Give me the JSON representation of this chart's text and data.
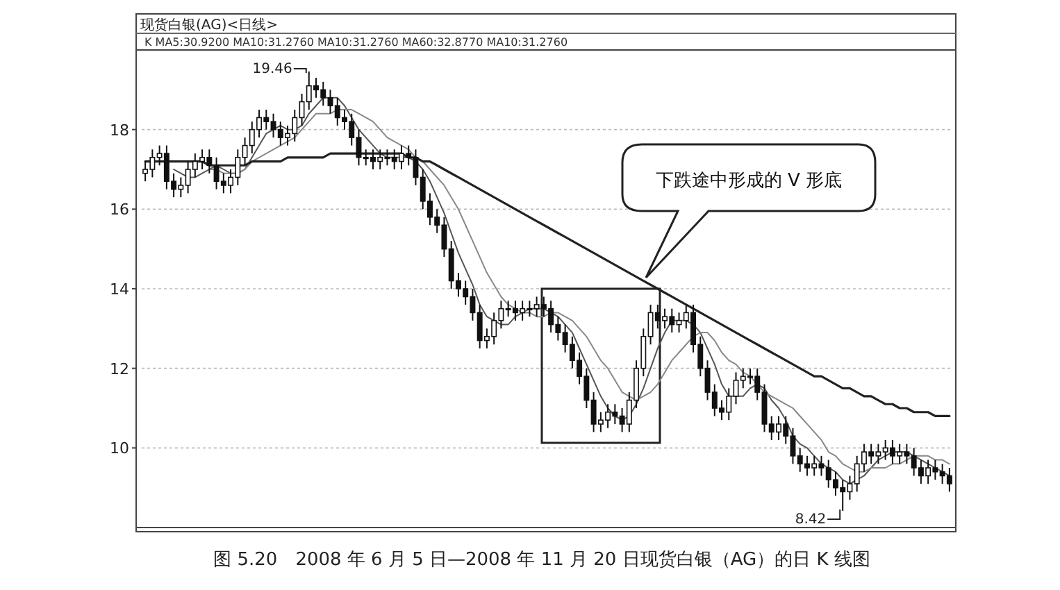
{
  "chart_data": {
    "type": "candlestick",
    "title": "现货白银(AG)<日线>",
    "subtitle": "K MA5:30.9200 MA10:31.2760 MA10:31.2760 MA60:32.8770 MA10:31.2760",
    "categories": [
      null,
      null,
      null,
      null,
      null,
      null,
      null,
      null,
      null,
      null,
      null,
      null,
      null,
      null,
      null,
      null,
      null,
      null,
      null,
      null,
      null,
      null,
      null,
      null,
      null,
      null,
      null,
      null,
      null,
      null,
      null,
      null,
      null,
      null,
      null,
      null,
      null,
      null,
      null,
      null,
      null,
      null,
      null,
      null,
      null,
      null,
      null,
      null,
      null,
      null,
      null,
      null,
      null,
      null,
      null,
      null,
      null,
      null,
      null,
      null,
      null,
      null,
      null,
      null,
      null,
      null,
      null,
      null,
      null,
      null,
      null,
      null,
      null,
      null,
      null,
      null,
      null,
      null,
      null,
      null,
      null,
      null,
      null,
      null,
      null,
      null,
      null,
      null,
      null,
      null,
      null,
      null,
      null,
      null,
      null,
      null,
      null,
      null,
      null,
      null,
      null,
      null,
      null,
      null,
      null,
      null,
      null,
      null,
      null,
      null,
      null,
      null,
      null,
      null
    ],
    "ohlc": [
      [
        16.9,
        17.2,
        16.7,
        17.0
      ],
      [
        17.0,
        17.5,
        16.8,
        17.3
      ],
      [
        17.3,
        17.6,
        17.1,
        17.4
      ],
      [
        17.4,
        17.6,
        16.5,
        16.7
      ],
      [
        16.7,
        16.9,
        16.3,
        16.5
      ],
      [
        16.5,
        16.8,
        16.3,
        16.6
      ],
      [
        16.6,
        17.2,
        16.4,
        17.0
      ],
      [
        17.0,
        17.4,
        16.8,
        17.2
      ],
      [
        17.2,
        17.5,
        17.0,
        17.3
      ],
      [
        17.3,
        17.5,
        16.9,
        17.1
      ],
      [
        17.1,
        17.3,
        16.5,
        16.7
      ],
      [
        16.7,
        16.9,
        16.4,
        16.6
      ],
      [
        16.6,
        17.0,
        16.4,
        16.8
      ],
      [
        16.8,
        17.5,
        16.6,
        17.3
      ],
      [
        17.3,
        17.8,
        17.1,
        17.6
      ],
      [
        17.6,
        18.2,
        17.4,
        18.0
      ],
      [
        18.0,
        18.5,
        17.8,
        18.3
      ],
      [
        18.3,
        18.5,
        18.0,
        18.2
      ],
      [
        18.2,
        18.4,
        17.8,
        18.0
      ],
      [
        18.0,
        18.2,
        17.6,
        17.8
      ],
      [
        17.8,
        18.1,
        17.6,
        17.9
      ],
      [
        17.9,
        18.5,
        17.7,
        18.3
      ],
      [
        18.3,
        18.9,
        18.1,
        18.7
      ],
      [
        18.7,
        19.46,
        18.5,
        19.1
      ],
      [
        19.1,
        19.3,
        18.8,
        19.0
      ],
      [
        19.0,
        19.2,
        18.6,
        18.8
      ],
      [
        18.8,
        19.0,
        18.4,
        18.6
      ],
      [
        18.6,
        18.8,
        18.1,
        18.3
      ],
      [
        18.3,
        18.5,
        18.0,
        18.2
      ],
      [
        18.2,
        18.4,
        17.6,
        17.8
      ],
      [
        17.8,
        18.0,
        17.1,
        17.3
      ],
      [
        17.3,
        17.5,
        17.1,
        17.3
      ],
      [
        17.3,
        17.5,
        17.0,
        17.2
      ],
      [
        17.2,
        17.5,
        17.0,
        17.3
      ],
      [
        17.3,
        17.5,
        17.1,
        17.3
      ],
      [
        17.3,
        17.5,
        17.0,
        17.2
      ],
      [
        17.2,
        17.6,
        17.0,
        17.4
      ],
      [
        17.4,
        17.6,
        17.1,
        17.3
      ],
      [
        17.3,
        17.5,
        16.6,
        16.8
      ],
      [
        16.8,
        17.0,
        16.0,
        16.2
      ],
      [
        16.2,
        16.4,
        15.6,
        15.8
      ],
      [
        15.8,
        16.0,
        15.4,
        15.6
      ],
      [
        15.6,
        15.8,
        14.8,
        15.0
      ],
      [
        15.0,
        15.2,
        14.0,
        14.2
      ],
      [
        14.2,
        14.4,
        13.8,
        14.0
      ],
      [
        14.0,
        14.2,
        13.6,
        13.8
      ],
      [
        13.8,
        14.0,
        13.2,
        13.4
      ],
      [
        13.4,
        13.6,
        12.5,
        12.7
      ],
      [
        12.7,
        13.0,
        12.5,
        12.8
      ],
      [
        12.8,
        13.4,
        12.6,
        13.2
      ],
      [
        13.2,
        13.7,
        13.0,
        13.5
      ],
      [
        13.5,
        13.7,
        13.3,
        13.5
      ],
      [
        13.5,
        13.7,
        13.2,
        13.4
      ],
      [
        13.4,
        13.7,
        13.2,
        13.5
      ],
      [
        13.5,
        13.7,
        13.3,
        13.5
      ],
      [
        13.5,
        13.8,
        13.3,
        13.6
      ],
      [
        13.6,
        13.8,
        13.3,
        13.5
      ],
      [
        13.5,
        13.7,
        12.9,
        13.1
      ],
      [
        13.1,
        13.3,
        12.7,
        12.9
      ],
      [
        12.9,
        13.1,
        12.4,
        12.6
      ],
      [
        12.6,
        12.8,
        12.0,
        12.2
      ],
      [
        12.2,
        12.4,
        11.6,
        11.8
      ],
      [
        11.8,
        12.0,
        11.0,
        11.2
      ],
      [
        11.2,
        11.4,
        10.4,
        10.6
      ],
      [
        10.6,
        10.9,
        10.4,
        10.7
      ],
      [
        10.7,
        11.1,
        10.5,
        10.9
      ],
      [
        10.9,
        11.1,
        10.6,
        10.8
      ],
      [
        10.8,
        11.0,
        10.4,
        10.6
      ],
      [
        10.6,
        11.4,
        10.4,
        11.2
      ],
      [
        11.2,
        12.2,
        11.0,
        12.0
      ],
      [
        12.0,
        13.0,
        11.8,
        12.8
      ],
      [
        12.8,
        13.6,
        12.6,
        13.4
      ],
      [
        13.4,
        13.6,
        13.0,
        13.2
      ],
      [
        13.2,
        13.5,
        13.0,
        13.3
      ],
      [
        13.3,
        13.5,
        12.9,
        13.1
      ],
      [
        13.1,
        13.4,
        12.9,
        13.2
      ],
      [
        13.2,
        13.6,
        13.0,
        13.4
      ],
      [
        13.4,
        13.6,
        12.4,
        12.6
      ],
      [
        12.6,
        12.8,
        11.8,
        12.0
      ],
      [
        12.0,
        12.2,
        11.2,
        11.4
      ],
      [
        11.4,
        11.6,
        10.8,
        11.0
      ],
      [
        11.0,
        11.2,
        10.7,
        10.9
      ],
      [
        10.9,
        11.5,
        10.7,
        11.3
      ],
      [
        11.3,
        11.9,
        11.1,
        11.7
      ],
      [
        11.7,
        12.0,
        11.5,
        11.8
      ],
      [
        11.8,
        12.0,
        11.6,
        11.8
      ],
      [
        11.8,
        12.0,
        11.2,
        11.4
      ],
      [
        11.4,
        11.6,
        10.4,
        10.6
      ],
      [
        10.6,
        10.8,
        10.2,
        10.4
      ],
      [
        10.4,
        10.8,
        10.2,
        10.6
      ],
      [
        10.6,
        10.8,
        10.1,
        10.3
      ],
      [
        10.3,
        10.5,
        9.6,
        9.8
      ],
      [
        9.8,
        10.0,
        9.4,
        9.6
      ],
      [
        9.6,
        9.8,
        9.3,
        9.5
      ],
      [
        9.5,
        9.8,
        9.3,
        9.6
      ],
      [
        9.6,
        9.8,
        9.3,
        9.5
      ],
      [
        9.5,
        9.7,
        9.0,
        9.2
      ],
      [
        9.2,
        9.4,
        8.8,
        9.0
      ],
      [
        9.0,
        9.2,
        8.42,
        8.9
      ],
      [
        8.9,
        9.3,
        8.7,
        9.1
      ],
      [
        9.1,
        9.8,
        8.9,
        9.6
      ],
      [
        9.6,
        10.1,
        9.4,
        9.9
      ],
      [
        9.9,
        10.1,
        9.6,
        9.8
      ],
      [
        9.8,
        10.1,
        9.6,
        9.9
      ],
      [
        9.9,
        10.2,
        9.7,
        10.0
      ],
      [
        10.0,
        10.2,
        9.6,
        9.8
      ],
      [
        9.8,
        10.1,
        9.6,
        9.9
      ],
      [
        9.9,
        10.1,
        9.6,
        9.8
      ],
      [
        9.8,
        10.0,
        9.3,
        9.5
      ],
      [
        9.5,
        9.7,
        9.1,
        9.3
      ],
      [
        9.3,
        9.7,
        9.1,
        9.5
      ],
      [
        9.5,
        9.7,
        9.2,
        9.4
      ],
      [
        9.4,
        9.6,
        9.1,
        9.3
      ],
      [
        9.3,
        9.5,
        8.9,
        9.1
      ]
    ],
    "series": [
      {
        "type": "line",
        "color": "#555555",
        "values": [
          null,
          null,
          null,
          null,
          17.0,
          16.9,
          16.8,
          16.8,
          16.9,
          17.0,
          17.1,
          17.0,
          16.9,
          16.9,
          17.0,
          17.3,
          17.6,
          17.9,
          18.0,
          18.1,
          18.0,
          18.0,
          18.1,
          18.4,
          18.6,
          18.8,
          18.8,
          18.8,
          18.6,
          18.3,
          18.0,
          17.8,
          17.6,
          17.4,
          17.3,
          17.3,
          17.3,
          17.3,
          17.2,
          17.0,
          16.7,
          16.3,
          15.9,
          15.4,
          14.9,
          14.5,
          14.1,
          13.6,
          13.3,
          13.2,
          13.1,
          13.1,
          13.3,
          13.4,
          13.5,
          13.5,
          13.5,
          13.4,
          13.3,
          13.1,
          12.9,
          12.5,
          12.1,
          11.7,
          11.3,
          11.0,
          10.8,
          10.7,
          10.8,
          11.1,
          11.5,
          12.0,
          12.5,
          12.9,
          13.2,
          13.2,
          13.2,
          13.1,
          12.9,
          12.5,
          12.1,
          11.6,
          11.3,
          11.3,
          11.3,
          11.5,
          11.6,
          11.5,
          11.2,
          11.0,
          10.7,
          10.3,
          10.1,
          10.0,
          9.8,
          9.6,
          9.5,
          9.4,
          9.2,
          9.1,
          9.2,
          9.3,
          9.5,
          9.7,
          9.8,
          9.9,
          9.9,
          9.9,
          9.8,
          9.7,
          9.6,
          9.5,
          9.4,
          9.3
        ]
      },
      {
        "type": "line",
        "color": "#888888",
        "values": [
          null,
          null,
          null,
          null,
          null,
          null,
          null,
          null,
          null,
          17.0,
          17.0,
          16.9,
          16.9,
          16.9,
          17.0,
          17.2,
          17.3,
          17.4,
          17.5,
          17.6,
          17.7,
          17.8,
          18.0,
          18.2,
          18.4,
          18.4,
          18.4,
          18.5,
          18.5,
          18.5,
          18.4,
          18.3,
          18.2,
          18.0,
          17.8,
          17.7,
          17.6,
          17.5,
          17.3,
          17.2,
          17.0,
          16.8,
          16.6,
          16.3,
          16.0,
          15.6,
          15.2,
          14.8,
          14.4,
          14.1,
          13.8,
          13.6,
          13.5,
          13.4,
          13.4,
          13.3,
          13.3,
          13.4,
          13.4,
          13.3,
          13.2,
          13.0,
          12.8,
          12.5,
          12.2,
          12.0,
          11.7,
          11.4,
          11.3,
          11.2,
          11.3,
          11.4,
          11.6,
          11.9,
          12.2,
          12.4,
          12.6,
          12.8,
          12.9,
          12.9,
          12.7,
          12.4,
          12.2,
          12.1,
          11.9,
          11.8,
          11.6,
          11.4,
          11.3,
          11.2,
          11.1,
          11.0,
          10.8,
          10.6,
          10.4,
          10.2,
          9.9,
          9.8,
          9.6,
          9.5,
          9.4,
          9.4,
          9.5,
          9.5,
          9.5,
          9.6,
          9.6,
          9.7,
          9.8,
          9.8,
          9.8,
          9.7,
          9.7,
          9.6
        ]
      },
      {
        "type": "line",
        "color": "#222222",
        "values": [
          17.2,
          17.2,
          17.2,
          17.2,
          17.2,
          17.2,
          17.2,
          17.2,
          17.2,
          17.1,
          17.1,
          17.1,
          17.1,
          17.1,
          17.1,
          17.2,
          17.2,
          17.2,
          17.2,
          17.2,
          17.3,
          17.3,
          17.3,
          17.3,
          17.3,
          17.3,
          17.4,
          17.4,
          17.4,
          17.4,
          17.4,
          17.4,
          17.4,
          17.4,
          17.4,
          17.4,
          17.4,
          17.3,
          17.3,
          17.2,
          17.2,
          17.1,
          17.0,
          16.9,
          16.8,
          16.7,
          16.6,
          16.5,
          16.4,
          16.3,
          16.2,
          16.1,
          16.0,
          15.9,
          15.8,
          15.7,
          15.6,
          15.5,
          15.4,
          15.3,
          15.2,
          15.1,
          15.0,
          14.9,
          14.8,
          14.7,
          14.6,
          14.5,
          14.4,
          14.3,
          14.2,
          14.1,
          14.0,
          13.9,
          13.8,
          13.7,
          13.6,
          13.5,
          13.4,
          13.3,
          13.2,
          13.1,
          13.0,
          12.9,
          12.8,
          12.7,
          12.6,
          12.5,
          12.4,
          12.3,
          12.2,
          12.1,
          12.0,
          11.9,
          11.8,
          11.8,
          11.7,
          11.6,
          11.5,
          11.5,
          11.4,
          11.3,
          11.3,
          11.2,
          11.1,
          11.1,
          11.0,
          11.0,
          10.9,
          10.9,
          10.9,
          10.8,
          10.8,
          10.8
        ]
      }
    ],
    "ylim": [
      8.0,
      20.0
    ],
    "yticks": [
      10,
      12,
      14,
      16,
      18
    ],
    "grid": "y",
    "annotations": [
      "19.46",
      "8.42",
      "下跌途中形成的 V 形底",
      "图 5.20　2008 年 6 月 5 日—2008 年 11 月 20 日现货白银（AG）的日 K 线图"
    ]
  }
}
